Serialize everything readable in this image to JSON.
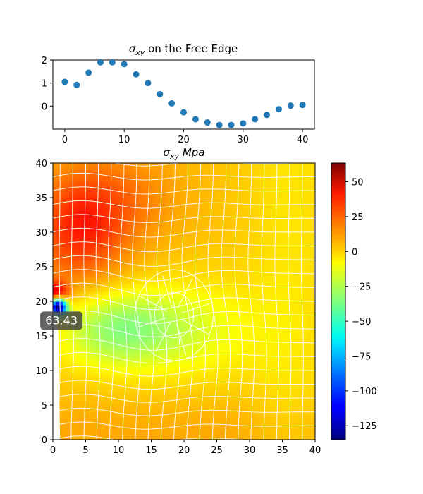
{
  "chart_data": [
    {
      "type": "scatter",
      "title_prefix": "σ",
      "title_sub": "xy",
      "title_suffix": " on the Free Edge",
      "x": [
        0,
        2,
        4,
        6,
        8,
        10,
        12,
        14,
        16,
        18,
        20,
        22,
        24,
        26,
        28,
        30,
        32,
        34,
        36,
        38,
        40
      ],
      "y": [
        1.05,
        0.92,
        1.45,
        1.9,
        1.9,
        1.82,
        1.38,
        1.0,
        0.52,
        0.12,
        -0.27,
        -0.57,
        -0.71,
        -0.82,
        -0.82,
        -0.75,
        -0.57,
        -0.38,
        -0.13,
        0.02,
        0.05
      ],
      "xlim": [
        -2,
        42
      ],
      "ylim": [
        -1.0,
        2.0
      ],
      "xticks": [
        0,
        10,
        20,
        30,
        40
      ],
      "yticks": [
        0,
        1,
        2
      ],
      "marker_color": "#1f77b4",
      "grid": false
    },
    {
      "type": "heatmap",
      "title_prefix": "σ",
      "title_sub": "xy",
      "title_suffix": " Mpa",
      "xlim": [
        0,
        40
      ],
      "ylim": [
        0,
        40
      ],
      "xticks": [
        0,
        5,
        10,
        15,
        20,
        25,
        30,
        35,
        40
      ],
      "yticks": [
        0,
        5,
        10,
        15,
        20,
        25,
        30,
        35,
        40
      ],
      "colormap": "jet",
      "vmin": -135,
      "vmax": 63.43,
      "colorbar_ticks": [
        50,
        25,
        0,
        -25,
        -50,
        -75,
        -100,
        -125
      ],
      "colorbar_tick_labels": [
        "50",
        "25",
        "0",
        "−25",
        "−50",
        "−75",
        "−100",
        "−125"
      ],
      "annotation": {
        "text": "63.43",
        "x": 1.3,
        "y": 17.2
      },
      "mesh_color": "#ffffff"
    }
  ]
}
